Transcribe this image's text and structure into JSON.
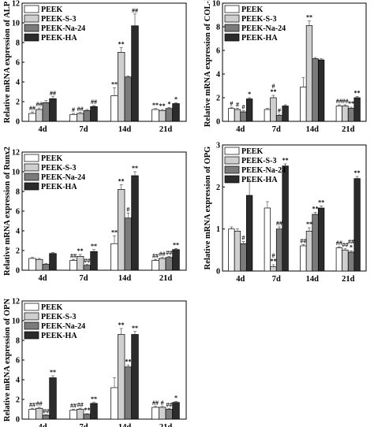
{
  "colors": {
    "PEEK": "#ffffff",
    "PEEK-S-3": "#cfcfcf",
    "PEEK-Na-24": "#7b7b7b",
    "PEEK-HA": "#2b2b2b",
    "axis": "#000000"
  },
  "chart_data": [
    {
      "type": "bar",
      "ylabel": "Relative mRNA expression of ALP",
      "ylim": [
        0,
        12
      ],
      "yticks": [
        "0",
        "2",
        "4",
        "6",
        "8",
        "10",
        "12"
      ],
      "categories": [
        "4d",
        "7d",
        "14d",
        "21d"
      ],
      "series": [
        {
          "name": "PEEK",
          "values": [
            0.8,
            0.7,
            2.6,
            1.2
          ],
          "errors": [
            0.15,
            0.1,
            0.8,
            0.1
          ]
        },
        {
          "name": "PEEK-S-3",
          "values": [
            1.2,
            0.8,
            7.0,
            1.1
          ],
          "errors": [
            0.15,
            0.1,
            0.5,
            0.1
          ]
        },
        {
          "name": "PEEK-Na-24",
          "values": [
            1.9,
            1.1,
            4.5,
            1.3
          ],
          "errors": [
            0.2,
            0.1,
            0.1,
            0.1
          ]
        },
        {
          "name": "PEEK-HA",
          "values": [
            2.3,
            1.5,
            9.7,
            1.8
          ],
          "errors": [
            0.2,
            0.1,
            1.2,
            0.1
          ]
        }
      ],
      "annotations": [
        [
          "##",
          "#",
          "**",
          "**"
        ],
        [
          "##",
          "##",
          "**",
          "**"
        ],
        [
          "",
          "",
          "",
          "*"
        ],
        [
          "##",
          "##",
          "##",
          "*"
        ]
      ],
      "legend": "top-left"
    },
    {
      "type": "bar",
      "ylabel": "Relative mRNA expression of COL-I",
      "ylim": [
        0,
        10
      ],
      "yticks": [
        "0",
        "2",
        "4",
        "6",
        "8",
        "10"
      ],
      "categories": [
        "4d",
        "7d",
        "14d",
        "21d"
      ],
      "series": [
        {
          "name": "PEEK",
          "values": [
            1.1,
            1.0,
            2.9,
            1.3
          ],
          "errors": [
            0.1,
            0.1,
            0.8,
            0.1
          ]
        },
        {
          "name": "PEEK-S-3",
          "values": [
            1.0,
            2.0,
            8.1,
            1.3
          ],
          "errors": [
            0.1,
            0.2,
            0.4,
            0.1
          ]
        },
        {
          "name": "PEEK-Na-24",
          "values": [
            0.8,
            0.5,
            5.3,
            1.1
          ],
          "errors": [
            0.1,
            0.1,
            0.1,
            0.1
          ]
        },
        {
          "name": "PEEK-HA",
          "values": [
            1.9,
            1.3,
            5.2,
            2.0
          ],
          "errors": [
            0.1,
            0.1,
            0.1,
            0.1
          ]
        }
      ],
      "annotations": [
        [
          "#",
          "",
          "",
          "##"
        ],
        [
          "#",
          "#\n**",
          "**",
          "##"
        ],
        [
          "#",
          "#",
          "",
          "**"
        ],
        [
          "*",
          "",
          "",
          "**"
        ]
      ],
      "legend": "top-left"
    },
    {
      "type": "bar",
      "ylabel": "Relative mRNA expression of Runx2",
      "ylim": [
        0,
        12
      ],
      "yticks": [
        "0",
        "2",
        "4",
        "6",
        "8",
        "10",
        "12"
      ],
      "categories": [
        "4d",
        "7d",
        "14d",
        "21d"
      ],
      "series": [
        {
          "name": "PEEK",
          "values": [
            1.2,
            1.0,
            2.7,
            1.0
          ],
          "errors": [
            0.1,
            0.1,
            0.8,
            0.1
          ]
        },
        {
          "name": "PEEK-S-3",
          "values": [
            1.1,
            1.4,
            8.2,
            1.2
          ],
          "errors": [
            0.1,
            0.2,
            0.5,
            0.1
          ]
        },
        {
          "name": "PEEK-Na-24",
          "values": [
            0.6,
            0.5,
            5.3,
            1.3
          ],
          "errors": [
            0.1,
            0.1,
            0.5,
            0.1
          ]
        },
        {
          "name": "PEEK-HA",
          "values": [
            1.7,
            1.9,
            9.6,
            2.1
          ],
          "errors": [
            0.1,
            0.2,
            0.4,
            0.1
          ]
        }
      ],
      "annotations": [
        [
          "",
          "##",
          "**",
          "##"
        ],
        [
          "",
          "**",
          "**",
          "##"
        ],
        [
          "",
          "##",
          "#",
          "##"
        ],
        [
          "",
          "**",
          "**",
          "**"
        ]
      ],
      "legend": "top-left"
    },
    {
      "type": "bar",
      "ylabel": "Relative mRNA expression of OPG",
      "ylim": [
        0,
        3
      ],
      "yticks": [
        "0",
        "1",
        "2",
        "3"
      ],
      "categories": [
        "4d",
        "7d",
        "14d",
        "21d"
      ],
      "series": [
        {
          "name": "PEEK",
          "values": [
            1.0,
            1.5,
            0.6,
            0.55
          ],
          "errors": [
            0.05,
            0.15,
            0.03,
            0.03
          ]
        },
        {
          "name": "PEEK-S-3",
          "values": [
            0.95,
            0.1,
            0.95,
            0.5
          ],
          "errors": [
            0.05,
            0.05,
            0.08,
            0.03
          ]
        },
        {
          "name": "PEEK-Na-24",
          "values": [
            0.65,
            1.0,
            1.35,
            0.45
          ],
          "errors": [
            0.05,
            0.05,
            0.05,
            0.03
          ]
        },
        {
          "name": "PEEK-HA",
          "values": [
            1.8,
            2.5,
            1.5,
            2.2
          ],
          "errors": [
            0.35,
            0.05,
            0.05,
            0.05
          ]
        }
      ],
      "annotations": [
        [
          "",
          "",
          "##",
          "##"
        ],
        [
          "",
          "#\n**",
          "**",
          "##"
        ],
        [
          "#",
          "##",
          "**",
          "##\n*"
        ],
        [
          "",
          "**",
          "**",
          "**"
        ]
      ],
      "legend": "top-left"
    },
    {
      "type": "bar",
      "ylabel": "Relative mRNA expression of OPN",
      "ylim": [
        0,
        12
      ],
      "yticks": [
        "0",
        "2",
        "4",
        "6",
        "8",
        "10",
        "12"
      ],
      "categories": [
        "4d",
        "7d",
        "14d",
        "21d"
      ],
      "series": [
        {
          "name": "PEEK",
          "values": [
            1.0,
            0.9,
            3.2,
            1.2
          ],
          "errors": [
            0.1,
            0.1,
            1.0,
            0.1
          ]
        },
        {
          "name": "PEEK-S-3",
          "values": [
            1.1,
            1.0,
            8.6,
            1.2
          ],
          "errors": [
            0.1,
            0.1,
            0.6,
            0.1
          ]
        },
        {
          "name": "PEEK-Na-24",
          "values": [
            0.4,
            0.5,
            5.3,
            1.0
          ],
          "errors": [
            0.05,
            0.05,
            0.2,
            0.1
          ]
        },
        {
          "name": "PEEK-HA",
          "values": [
            4.2,
            1.6,
            8.6,
            1.7
          ],
          "errors": [
            0.2,
            0.1,
            0.3,
            0.1
          ]
        }
      ],
      "annotations": [
        [
          "##",
          "##",
          "",
          "##"
        ],
        [
          "##",
          "##",
          "**",
          "#"
        ],
        [
          "##",
          "**",
          "**",
          "##"
        ],
        [
          "**",
          "**",
          "**",
          "*"
        ]
      ],
      "legend": "top-left"
    }
  ]
}
